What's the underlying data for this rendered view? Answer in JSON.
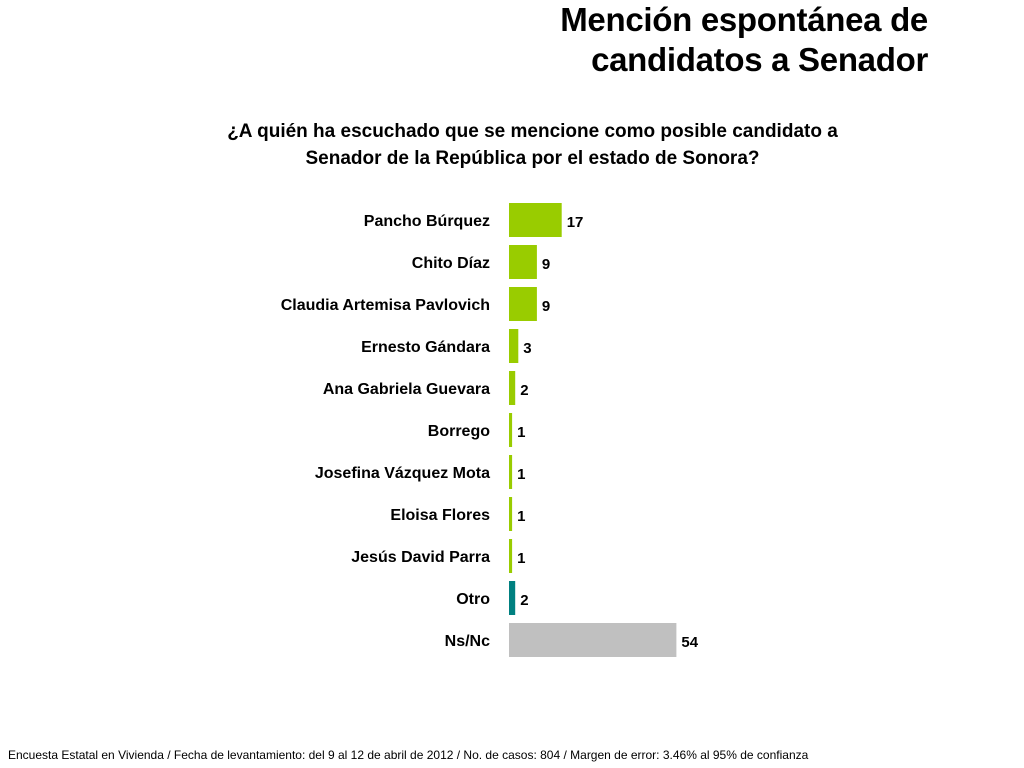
{
  "title": {
    "line1": "Mención espontánea de",
    "line2": "candidatos a Senador"
  },
  "question": {
    "line1": "¿A quién ha escuchado que se mencione como posible candidato a",
    "line2": "Senador de la República por el estado de Sonora?"
  },
  "chart_data": {
    "type": "bar",
    "orientation": "horizontal",
    "title": "",
    "xlabel": "",
    "ylabel": "",
    "categories": [
      "Pancho Búrquez",
      "Chito Díaz",
      "Claudia Artemisa Pavlovich",
      "Ernesto Gándara",
      "Ana Gabriela Guevara",
      "Borrego",
      "Josefina Vázquez Mota",
      "Eloisa Flores",
      "Jesús David Parra",
      "Otro",
      "Ns/Nc"
    ],
    "values": [
      17,
      9,
      9,
      3,
      2,
      1,
      1,
      1,
      1,
      2,
      54
    ],
    "bar_colors": [
      "#99cc00",
      "#99cc00",
      "#99cc00",
      "#99cc00",
      "#99cc00",
      "#99cc00",
      "#99cc00",
      "#99cc00",
      "#99cc00",
      "#008080",
      "#c0c0c0"
    ],
    "grid": false,
    "legend": "none",
    "data_labels": true
  },
  "footer": {
    "text": "Encuesta Estatal en Vivienda / Fecha de levantamiento: del 9 al 12 de abril de 2012 / No. de casos: 804 / Margen de error: 3.46% al 95% de confianza"
  }
}
